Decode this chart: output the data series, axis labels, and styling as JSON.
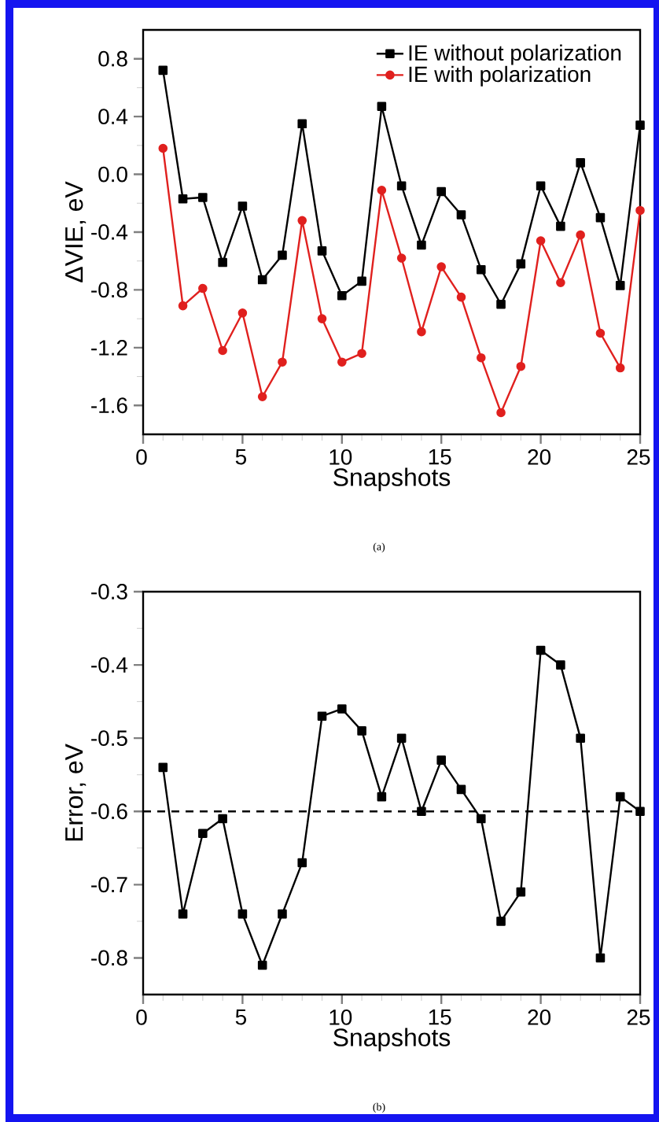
{
  "chart_data": [
    {
      "type": "line",
      "x": [
        1,
        2,
        3,
        4,
        5,
        6,
        7,
        8,
        9,
        10,
        11,
        12,
        13,
        14,
        15,
        16,
        17,
        18,
        19,
        20,
        21,
        22,
        23,
        24,
        25
      ],
      "xlabel": "Snapshots",
      "ylabel": "ΔVIE, eV",
      "xlim": [
        0,
        25
      ],
      "ylim": [
        -1.8,
        1.0
      ],
      "xticks": [
        0,
        5,
        10,
        15,
        20,
        25
      ],
      "yticks": [
        -1.6,
        -1.2,
        -0.8,
        -0.4,
        {
          "value": 0,
          "label": "0.0"
        },
        0.4,
        0.8
      ],
      "marker": "square",
      "line_style": "solid",
      "legend": "top right",
      "annotations": [
        "(a)"
      ],
      "series": [
        {
          "name": "IE without polarization",
          "color": "#000000",
          "marker": "square",
          "values": [
            0.72,
            -0.17,
            -0.16,
            -0.61,
            -0.22,
            -0.73,
            -0.56,
            0.35,
            -0.53,
            -0.84,
            -0.74,
            0.47,
            -0.08,
            -0.49,
            -0.12,
            -0.28,
            -0.66,
            -0.9,
            -0.62,
            -0.08,
            -0.36,
            0.08,
            -0.3,
            -0.77,
            0.34
          ]
        },
        {
          "name": "IE with polarization",
          "color": "#e0201e",
          "marker": "circle",
          "values": [
            0.18,
            -0.91,
            -0.79,
            -1.22,
            -0.96,
            -1.54,
            -1.3,
            -0.32,
            -1.0,
            -1.3,
            -1.24,
            -0.11,
            -0.58,
            -1.09,
            -0.64,
            -0.85,
            -1.27,
            -1.65,
            -1.33,
            -0.46,
            -0.75,
            -0.42,
            -1.1,
            -1.34,
            -0.25
          ]
        }
      ]
    },
    {
      "type": "line",
      "x": [
        1,
        2,
        3,
        4,
        5,
        6,
        7,
        8,
        9,
        10,
        11,
        12,
        13,
        14,
        15,
        16,
        17,
        18,
        19,
        20,
        21,
        22,
        23,
        24,
        25
      ],
      "xlabel": "Snapshots",
      "ylabel": "Error, eV",
      "xlim": [
        0,
        25
      ],
      "ylim": [
        -0.85,
        -0.3
      ],
      "xticks": [
        0,
        5,
        10,
        15,
        20,
        25
      ],
      "yticks": [
        -0.8,
        -0.7,
        -0.6,
        -0.5,
        -0.4,
        -0.3
      ],
      "marker": "square",
      "line_style": "solid",
      "annotations": [
        "(b)"
      ],
      "ref_lines": [
        {
          "axis": "y",
          "value": -0.6,
          "line_style": "dashed",
          "color": "#000000"
        }
      ],
      "series": [
        {
          "color": "#000000",
          "values": [
            -0.54,
            -0.74,
            -0.63,
            -0.61,
            -0.74,
            -0.81,
            -0.74,
            -0.67,
            -0.47,
            -0.46,
            -0.49,
            -0.58,
            -0.5,
            -0.6,
            -0.53,
            -0.57,
            -0.61,
            -0.75,
            -0.71,
            -0.38,
            -0.4,
            -0.5,
            -0.8,
            -0.58,
            -0.6
          ]
        }
      ]
    }
  ]
}
